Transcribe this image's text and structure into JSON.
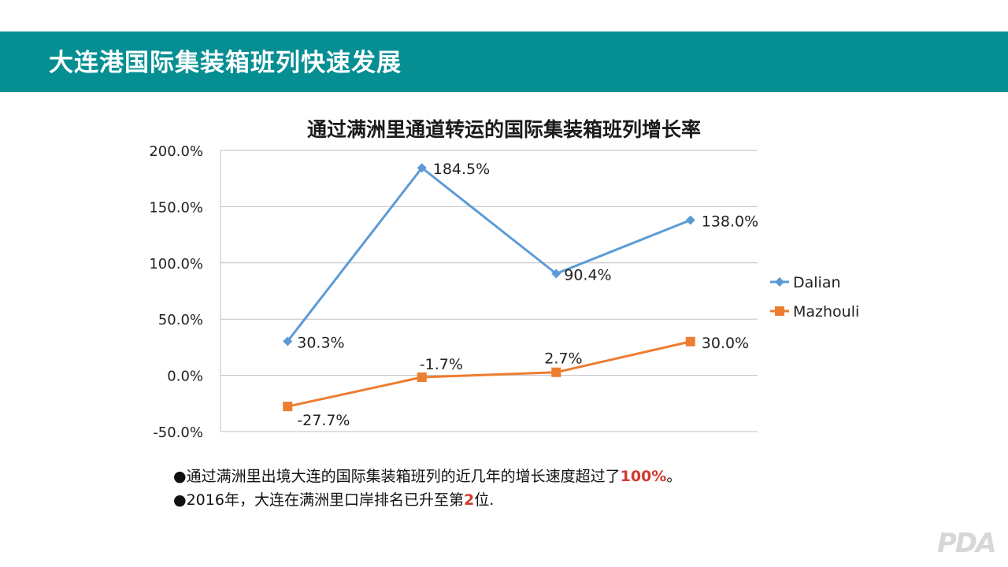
{
  "slide": {
    "title": "大连港国际集装箱班列快速发展",
    "bullets": [
      {
        "marker": "●",
        "text": "通过满洲里出境大连的国际集装箱班列的近几年的增长速度超过了",
        "highlight": "100%",
        "suffix": "。"
      },
      {
        "marker": "●",
        "text": "2016年，大连在满洲里口岸排名已升至第",
        "highlight": "2",
        "suffix": "位."
      }
    ],
    "logo_text": "PDA",
    "colors": {
      "banner": "#058f93",
      "highlight": "#d23a2f"
    }
  },
  "chart_data": {
    "type": "line",
    "title": "通过满洲里通道转运的国际集装箱班列增长率",
    "categories": [
      "",
      "",
      "",
      ""
    ],
    "ylim": [
      -50,
      200
    ],
    "yticks": [
      200,
      150,
      100,
      50,
      0,
      -50
    ],
    "ytick_labels": [
      "200.0%",
      "150.0%",
      "100.0%",
      "50.0%",
      "0.0%",
      "-50.0%"
    ],
    "grid": true,
    "legend_position": "right",
    "series": [
      {
        "name": "Dalian",
        "values": [
          30.3,
          184.5,
          90.4,
          138.0
        ],
        "labels": [
          "30.3%",
          "184.5%",
          "90.4%",
          "138.0%"
        ],
        "color": "#5b9bd5",
        "marker": "diamond"
      },
      {
        "name": "Mazhouli",
        "values": [
          -27.7,
          -1.7,
          2.7,
          30.0
        ],
        "labels": [
          "-27.7%",
          "-1.7%",
          "2.7%",
          "30.0%"
        ],
        "color": "#ed7d31",
        "marker": "square"
      }
    ]
  }
}
